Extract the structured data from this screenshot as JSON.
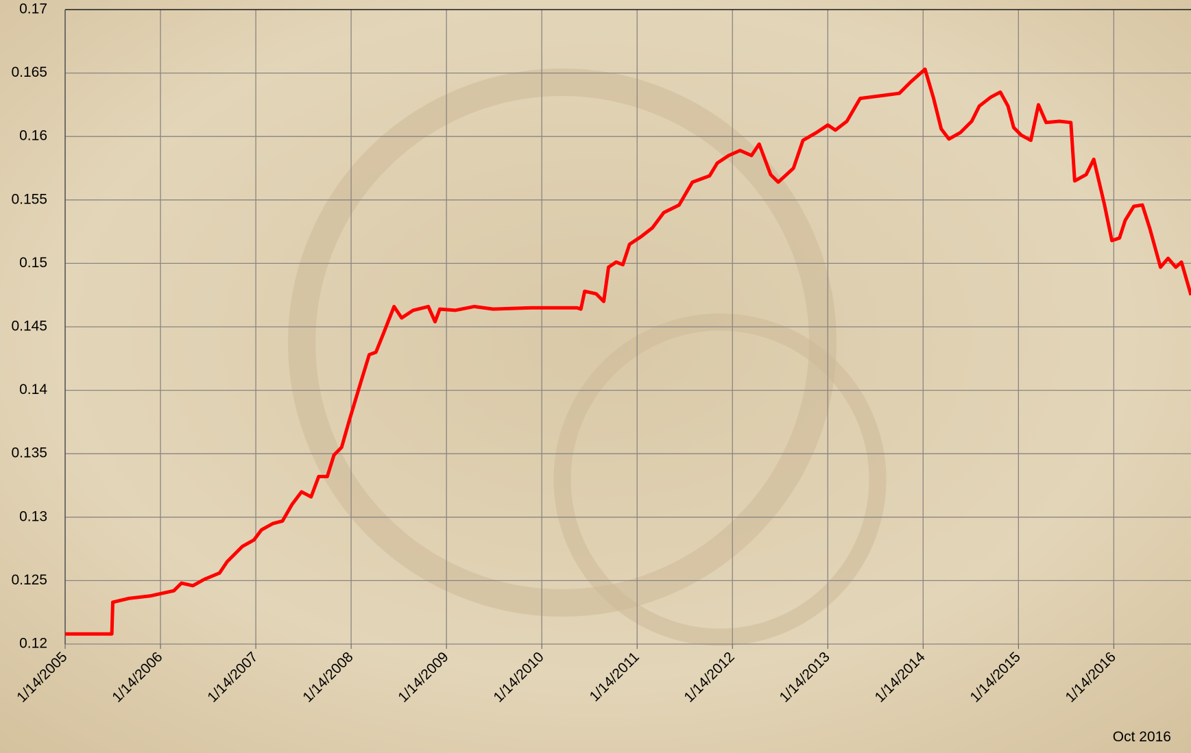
{
  "chart_data": {
    "type": "line",
    "annotation": "Oct 2016",
    "color": "#ff0000",
    "grid": true,
    "x": [
      2005.04,
      2005.51,
      2005.53,
      2005.54,
      2005.71,
      2005.94,
      2006.18,
      2006.26,
      2006.38,
      2006.5,
      2006.66,
      2006.74,
      2006.9,
      2007.02,
      2007.1,
      2007.22,
      2007.32,
      2007.42,
      2007.52,
      2007.62,
      2007.7,
      2007.79,
      2007.86,
      2007.94,
      2008.02,
      2008.14,
      2008.23,
      2008.3,
      2008.38,
      2008.49,
      2008.57,
      2008.69,
      2008.85,
      2008.92,
      2008.97,
      2009.13,
      2009.33,
      2009.53,
      2009.93,
      2010.41,
      2010.45,
      2010.49,
      2010.61,
      2010.69,
      2010.74,
      2010.82,
      2010.89,
      2010.96,
      2011.08,
      2011.2,
      2011.32,
      2011.48,
      2011.62,
      2011.8,
      2011.88,
      2012.0,
      2012.12,
      2012.24,
      2012.32,
      2012.44,
      2012.52,
      2012.68,
      2012.78,
      2012.92,
      2013.04,
      2013.12,
      2013.24,
      2013.38,
      2013.59,
      2013.79,
      2013.91,
      2014.06,
      2014.15,
      2014.23,
      2014.31,
      2014.43,
      2014.55,
      2014.63,
      2014.75,
      2014.85,
      2014.93,
      2014.99,
      2015.07,
      2015.17,
      2015.25,
      2015.33,
      2015.47,
      2015.59,
      2015.63,
      2015.75,
      2015.83,
      2015.94,
      2016.02,
      2016.1,
      2016.16,
      2016.25,
      2016.34,
      2016.42,
      2016.53,
      2016.61,
      2016.69,
      2016.75,
      2016.85
    ],
    "values": [
      0.1208,
      0.1208,
      0.1208,
      0.1233,
      0.1236,
      0.1238,
      0.1242,
      0.1248,
      0.1246,
      0.1251,
      0.1256,
      0.1265,
      0.1277,
      0.1282,
      0.129,
      0.1295,
      0.1297,
      0.131,
      0.132,
      0.1316,
      0.1332,
      0.1332,
      0.1349,
      0.1355,
      0.1376,
      0.1406,
      0.1428,
      0.143,
      0.1445,
      0.1466,
      0.1457,
      0.1463,
      0.1466,
      0.1454,
      0.1464,
      0.1463,
      0.1466,
      0.1464,
      0.1465,
      0.1465,
      0.1464,
      0.1478,
      0.1476,
      0.147,
      0.1497,
      0.1501,
      0.1499,
      0.1515,
      0.1521,
      0.1528,
      0.154,
      0.1546,
      0.1564,
      0.1569,
      0.1579,
      0.1585,
      0.1589,
      0.1585,
      0.1594,
      0.157,
      0.1564,
      0.1575,
      0.1597,
      0.1603,
      0.1609,
      0.1605,
      0.1612,
      0.163,
      0.1632,
      0.1634,
      0.1643,
      0.1653,
      0.163,
      0.1606,
      0.1598,
      0.1603,
      0.1612,
      0.1624,
      0.1631,
      0.1635,
      0.1624,
      0.1607,
      0.1601,
      0.1597,
      0.1625,
      0.1611,
      0.1612,
      0.1611,
      0.1565,
      0.157,
      0.1582,
      0.1547,
      0.1518,
      0.152,
      0.1534,
      0.1545,
      0.1546,
      0.1527,
      0.1497,
      0.1504,
      0.1497,
      0.1501,
      0.1475
    ],
    "xlim": [
      2005.04,
      2016.85
    ],
    "xticks": [
      {
        "value": 2005.04,
        "label": "1/14/2005"
      },
      {
        "value": 2006.04,
        "label": "1/14/2006"
      },
      {
        "value": 2007.04,
        "label": "1/14/2007"
      },
      {
        "value": 2008.04,
        "label": "1/14/2008"
      },
      {
        "value": 2009.04,
        "label": "1/14/2009"
      },
      {
        "value": 2010.04,
        "label": "1/14/2010"
      },
      {
        "value": 2011.04,
        "label": "1/14/2011"
      },
      {
        "value": 2012.04,
        "label": "1/14/2012"
      },
      {
        "value": 2013.04,
        "label": "1/14/2013"
      },
      {
        "value": 2014.04,
        "label": "1/14/2014"
      },
      {
        "value": 2015.04,
        "label": "1/14/2015"
      },
      {
        "value": 2016.04,
        "label": "1/14/2016"
      }
    ],
    "ylim": [
      0.12,
      0.17
    ],
    "yticks": [
      0.12,
      0.125,
      0.13,
      0.135,
      0.14,
      0.145,
      0.15,
      0.155,
      0.16,
      0.165,
      0.17
    ]
  }
}
